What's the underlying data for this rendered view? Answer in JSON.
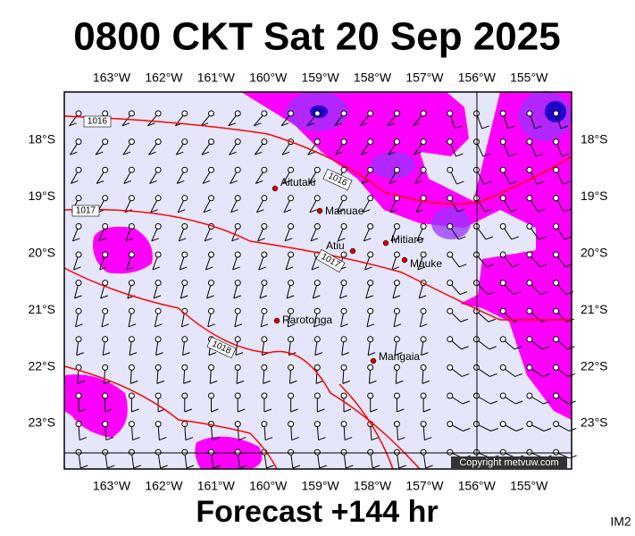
{
  "title": "0800 CKT Sat 20 Sep 2025",
  "longitude_labels": [
    "163°W",
    "162°W",
    "161°W",
    "160°W",
    "159°W",
    "158°W",
    "157°W",
    "156°W",
    "155°W"
  ],
  "latitude_labels": [
    "18°S",
    "19°S",
    "20°S",
    "21°S",
    "22°S",
    "23°S"
  ],
  "places": [
    {
      "label": "Aitutaki"
    },
    {
      "label": "Manuae"
    },
    {
      "label": "Mitiaro"
    },
    {
      "label": "Atiu"
    },
    {
      "label": "Mauke"
    },
    {
      "label": "Rarotonga"
    },
    {
      "label": "Mangaia"
    }
  ],
  "isobar_labels": [
    "1016",
    "1016",
    "1017",
    "1017",
    "1018"
  ],
  "copyright": "Copyright metvuw.com",
  "footer": "Forecast +144 hr",
  "image_id": "IM2"
}
